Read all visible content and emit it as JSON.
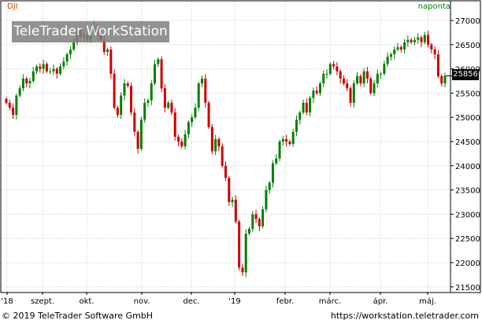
{
  "chart_data": {
    "type": "candlestick",
    "symbol": "DJI",
    "period": "naponta",
    "watermark": "TeleTrader WorkStation",
    "copyright": "© 2019 TeleTrader Software GmbH",
    "site": "https://workstation.teletrader.com",
    "last_price": "25856",
    "y_ticks": [
      "27000",
      "26500",
      "26000",
      "25500",
      "25000",
      "24500",
      "24000",
      "23500",
      "23000",
      "22500",
      "22000",
      "21500"
    ],
    "ylim": [
      21300,
      27100
    ],
    "x_ticks": [
      "'18",
      "szept.",
      "okt.",
      "nov.",
      "dec.",
      "'19",
      "febr.",
      "márc.",
      "ápr.",
      "máj."
    ],
    "grid": true,
    "colors": {
      "up": "#008000",
      "down": "#cc0000",
      "symbol": "#cc5500",
      "period": "#008000"
    },
    "closes": [
      25300,
      25200,
      25050,
      25450,
      25600,
      25800,
      25700,
      25750,
      25950,
      26050,
      26000,
      26100,
      25950,
      25950,
      26000,
      25900,
      26050,
      26150,
      26300,
      26400,
      26550,
      26800,
      26650,
      26700,
      26600,
      26750,
      26900,
      26700,
      26600,
      26350,
      26400,
      25900,
      25200,
      25050,
      25450,
      25700,
      25650,
      25100,
      24700,
      24350,
      24950,
      25300,
      25350,
      25700,
      26100,
      26200,
      25600,
      25200,
      25300,
      25100,
      24600,
      24500,
      24400,
      24650,
      24900,
      25000,
      25200,
      25700,
      25800,
      25300,
      24800,
      24300,
      24550,
      24400,
      24000,
      23750,
      23250,
      23300,
      22850,
      21900,
      21800,
      22600,
      22700,
      23000,
      22900,
      22750,
      23100,
      23500,
      23650,
      24050,
      24150,
      24500,
      24550,
      24500,
      24450,
      24700,
      24950,
      25100,
      25300,
      25100,
      25400,
      25550,
      25500,
      25700,
      25900,
      25900,
      26100,
      26050,
      25950,
      25800,
      25700,
      25600,
      25300,
      25700,
      25850,
      25700,
      25950,
      25800,
      25500,
      25700,
      25900,
      25900,
      26100,
      26250,
      26300,
      26400,
      26450,
      26400,
      26550,
      26600,
      26550,
      26600,
      26650,
      26550,
      26700,
      26500,
      26400,
      26300,
      25850,
      25700,
      25856
    ]
  }
}
